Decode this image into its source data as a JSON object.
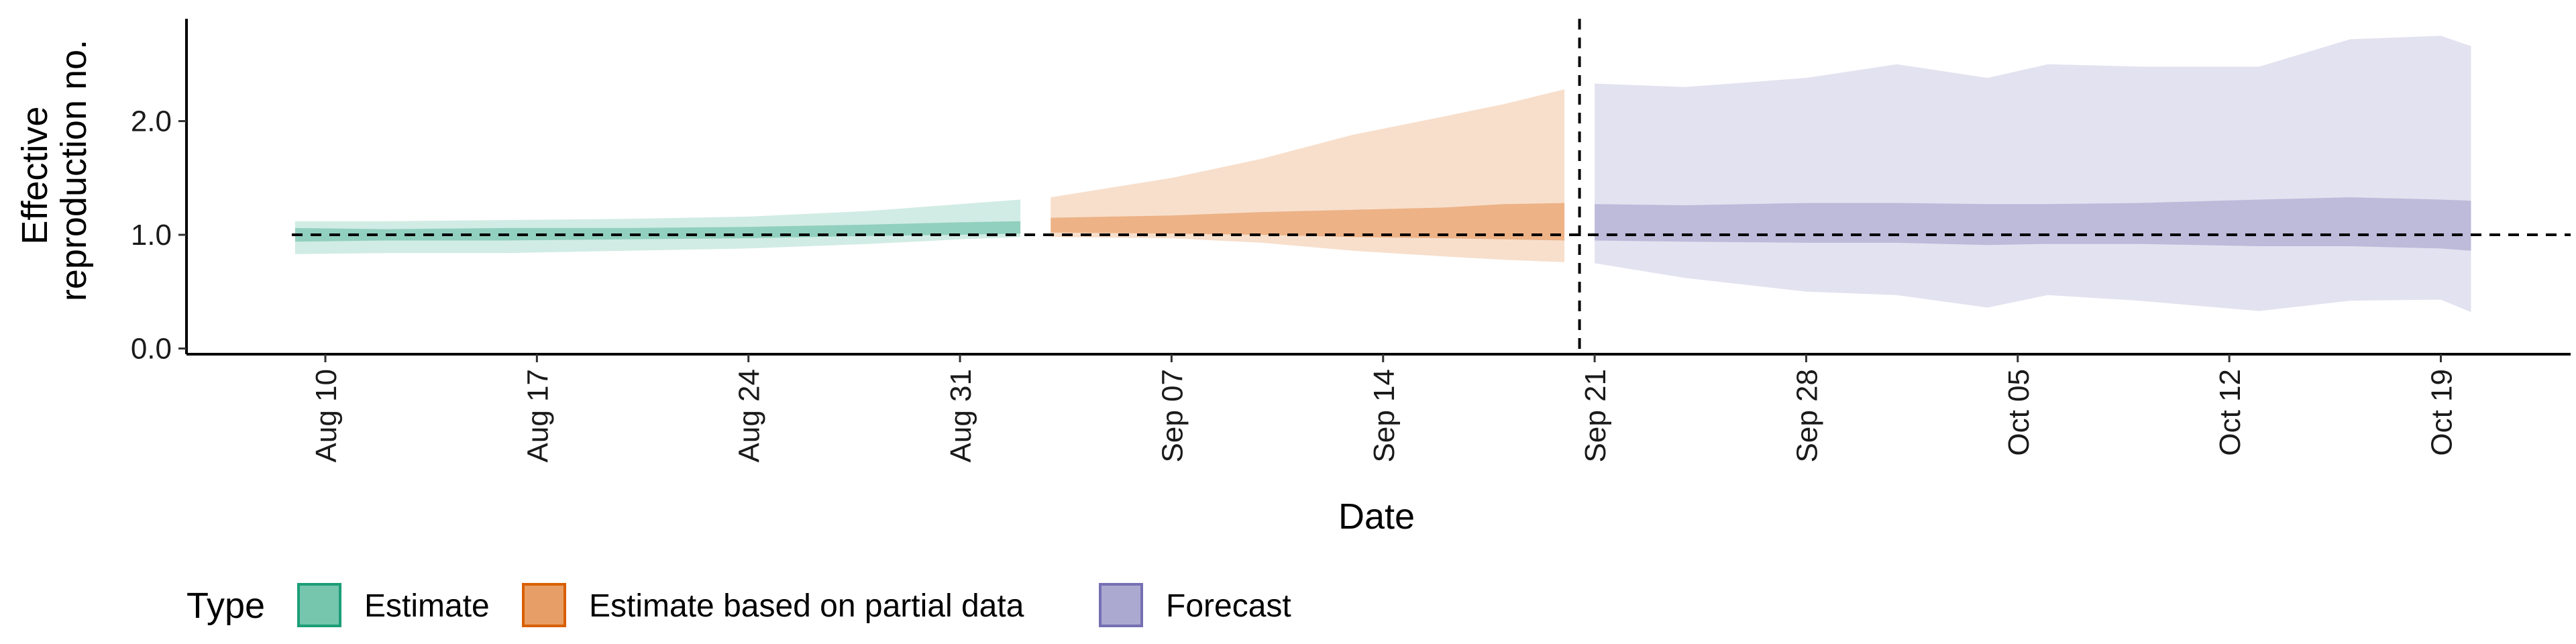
{
  "chart_data": {
    "type": "area",
    "xlabel": "Date",
    "ylabel_lines": [
      "Effective",
      "reproduction no."
    ],
    "ylim": [
      -0.05,
      2.9
    ],
    "y_ticks": [
      0.0,
      1.0,
      2.0
    ],
    "y_tick_labels": [
      "0.0",
      "1.0",
      "2.0"
    ],
    "x_ticks": [
      "2020-08-10",
      "2020-08-17",
      "2020-08-24",
      "2020-08-31",
      "2020-09-07",
      "2020-09-14",
      "2020-09-21",
      "2020-09-28",
      "2020-10-05",
      "2020-10-12",
      "2020-10-19"
    ],
    "x_tick_labels": [
      "Aug 10",
      "Aug 17",
      "Aug 24",
      "Aug 31",
      "Sep 07",
      "Sep 14",
      "Sep 21",
      "Sep 28",
      "Oct 05",
      "Oct 12",
      "Oct 19"
    ],
    "xlim": [
      "2020-08-04",
      "2020-10-23"
    ],
    "reference_line_y": 1.0,
    "forecast_divider_date": "2020-09-20",
    "grid": false,
    "legend": {
      "title": "Type",
      "placement": "bottom",
      "entries": [
        {
          "label": "Estimate",
          "fill": "#1b9e77",
          "stroke": "#1b9e77"
        },
        {
          "label": "Estimate based on partial data",
          "fill": "#d95f02",
          "stroke": "#d95f02"
        },
        {
          "label": "Forecast",
          "fill": "#7570b3",
          "stroke": "#7570b3"
        }
      ]
    },
    "series": [
      {
        "name": "Estimate",
        "color": "#1b9e77",
        "points": [
          {
            "date": "2020-08-09",
            "lo90": 0.83,
            "lo50": 0.94,
            "hi50": 1.06,
            "hi90": 1.12
          },
          {
            "date": "2020-08-12",
            "lo90": 0.84,
            "lo50": 0.95,
            "hi50": 1.05,
            "hi90": 1.12
          },
          {
            "date": "2020-08-16",
            "lo90": 0.84,
            "lo50": 0.95,
            "hi50": 1.06,
            "hi90": 1.13
          },
          {
            "date": "2020-08-20",
            "lo90": 0.86,
            "lo50": 0.96,
            "hi50": 1.06,
            "hi90": 1.14
          },
          {
            "date": "2020-08-24",
            "lo90": 0.88,
            "lo50": 0.97,
            "hi50": 1.07,
            "hi90": 1.16
          },
          {
            "date": "2020-08-28",
            "lo90": 0.92,
            "lo50": 0.99,
            "hi50": 1.09,
            "hi90": 1.21
          },
          {
            "date": "2020-08-31",
            "lo90": 0.96,
            "lo50": 1.0,
            "hi50": 1.11,
            "hi90": 1.27
          },
          {
            "date": "2020-09-02",
            "lo90": 0.98,
            "lo50": 1.01,
            "hi50": 1.12,
            "hi90": 1.31
          }
        ]
      },
      {
        "name": "Estimate based on partial data",
        "color": "#d95f02",
        "points": [
          {
            "date": "2020-09-03",
            "lo90": 0.98,
            "lo50": 1.02,
            "hi50": 1.15,
            "hi90": 1.33
          },
          {
            "date": "2020-09-07",
            "lo90": 0.97,
            "lo50": 1.01,
            "hi50": 1.17,
            "hi90": 1.5
          },
          {
            "date": "2020-09-10",
            "lo90": 0.93,
            "lo50": 1.0,
            "hi50": 1.2,
            "hi90": 1.67
          },
          {
            "date": "2020-09-13",
            "lo90": 0.86,
            "lo50": 0.98,
            "hi50": 1.22,
            "hi90": 1.88
          },
          {
            "date": "2020-09-16",
            "lo90": 0.81,
            "lo50": 0.97,
            "hi50": 1.24,
            "hi90": 2.04
          },
          {
            "date": "2020-09-18",
            "lo90": 0.78,
            "lo50": 0.96,
            "hi50": 1.27,
            "hi90": 2.15
          },
          {
            "date": "2020-09-20",
            "lo90": 0.76,
            "lo50": 0.95,
            "hi50": 1.28,
            "hi90": 2.28
          }
        ]
      },
      {
        "name": "Forecast",
        "color": "#7570b3",
        "points": [
          {
            "date": "2020-09-21",
            "lo90": 0.75,
            "lo50": 0.95,
            "hi50": 1.27,
            "hi90": 2.33
          },
          {
            "date": "2020-09-24",
            "lo90": 0.62,
            "lo50": 0.94,
            "hi50": 1.26,
            "hi90": 2.3
          },
          {
            "date": "2020-09-28",
            "lo90": 0.5,
            "lo50": 0.93,
            "hi50": 1.28,
            "hi90": 2.38
          },
          {
            "date": "2020-10-01",
            "lo90": 0.47,
            "lo50": 0.93,
            "hi50": 1.28,
            "hi90": 2.5
          },
          {
            "date": "2020-10-04",
            "lo90": 0.36,
            "lo50": 0.91,
            "hi50": 1.27,
            "hi90": 2.38
          },
          {
            "date": "2020-10-06",
            "lo90": 0.47,
            "lo50": 0.92,
            "hi50": 1.27,
            "hi90": 2.5
          },
          {
            "date": "2020-10-09",
            "lo90": 0.42,
            "lo50": 0.92,
            "hi50": 1.28,
            "hi90": 2.48
          },
          {
            "date": "2020-10-13",
            "lo90": 0.33,
            "lo50": 0.9,
            "hi50": 1.31,
            "hi90": 2.48
          },
          {
            "date": "2020-10-16",
            "lo90": 0.42,
            "lo50": 0.9,
            "hi50": 1.33,
            "hi90": 2.72
          },
          {
            "date": "2020-10-19",
            "lo90": 0.43,
            "lo50": 0.88,
            "hi50": 1.31,
            "hi90": 2.75
          },
          {
            "date": "2020-10-20",
            "lo90": 0.32,
            "lo50": 0.86,
            "hi50": 1.3,
            "hi90": 2.66
          }
        ]
      }
    ]
  }
}
